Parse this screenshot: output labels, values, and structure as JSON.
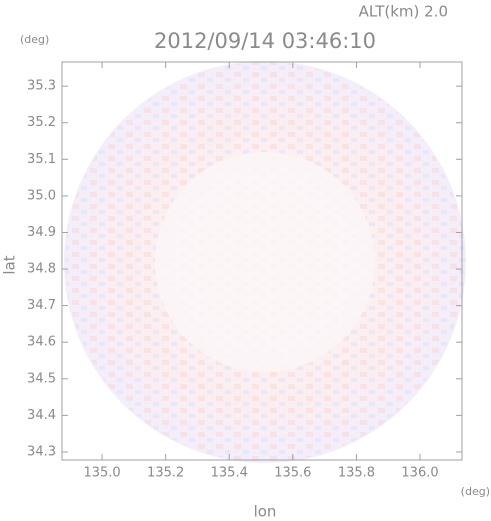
{
  "chart_data": {
    "type": "image",
    "title": "2012/09/14 03:46:10",
    "subtitle": "ALT(km) 2.0",
    "y_unit": "(deg)",
    "x_unit": "(deg)",
    "ylabel": "lat",
    "xlabel": "lon",
    "xlim": [
      134.874,
      136.132
    ],
    "ylim": [
      34.278,
      35.366
    ],
    "xticks": [
      {
        "value": 135.0,
        "label": "135.0"
      },
      135.2,
      135.4,
      135.6,
      135.8,
      {
        "value": 136.0,
        "label": "136.0"
      }
    ],
    "yticks": [
      34.3,
      34.4,
      34.5,
      34.6,
      34.7,
      34.8,
      34.9,
      {
        "value": 35.0,
        "label": "35.0"
      },
      35.1,
      35.2,
      35.3
    ]
  }
}
